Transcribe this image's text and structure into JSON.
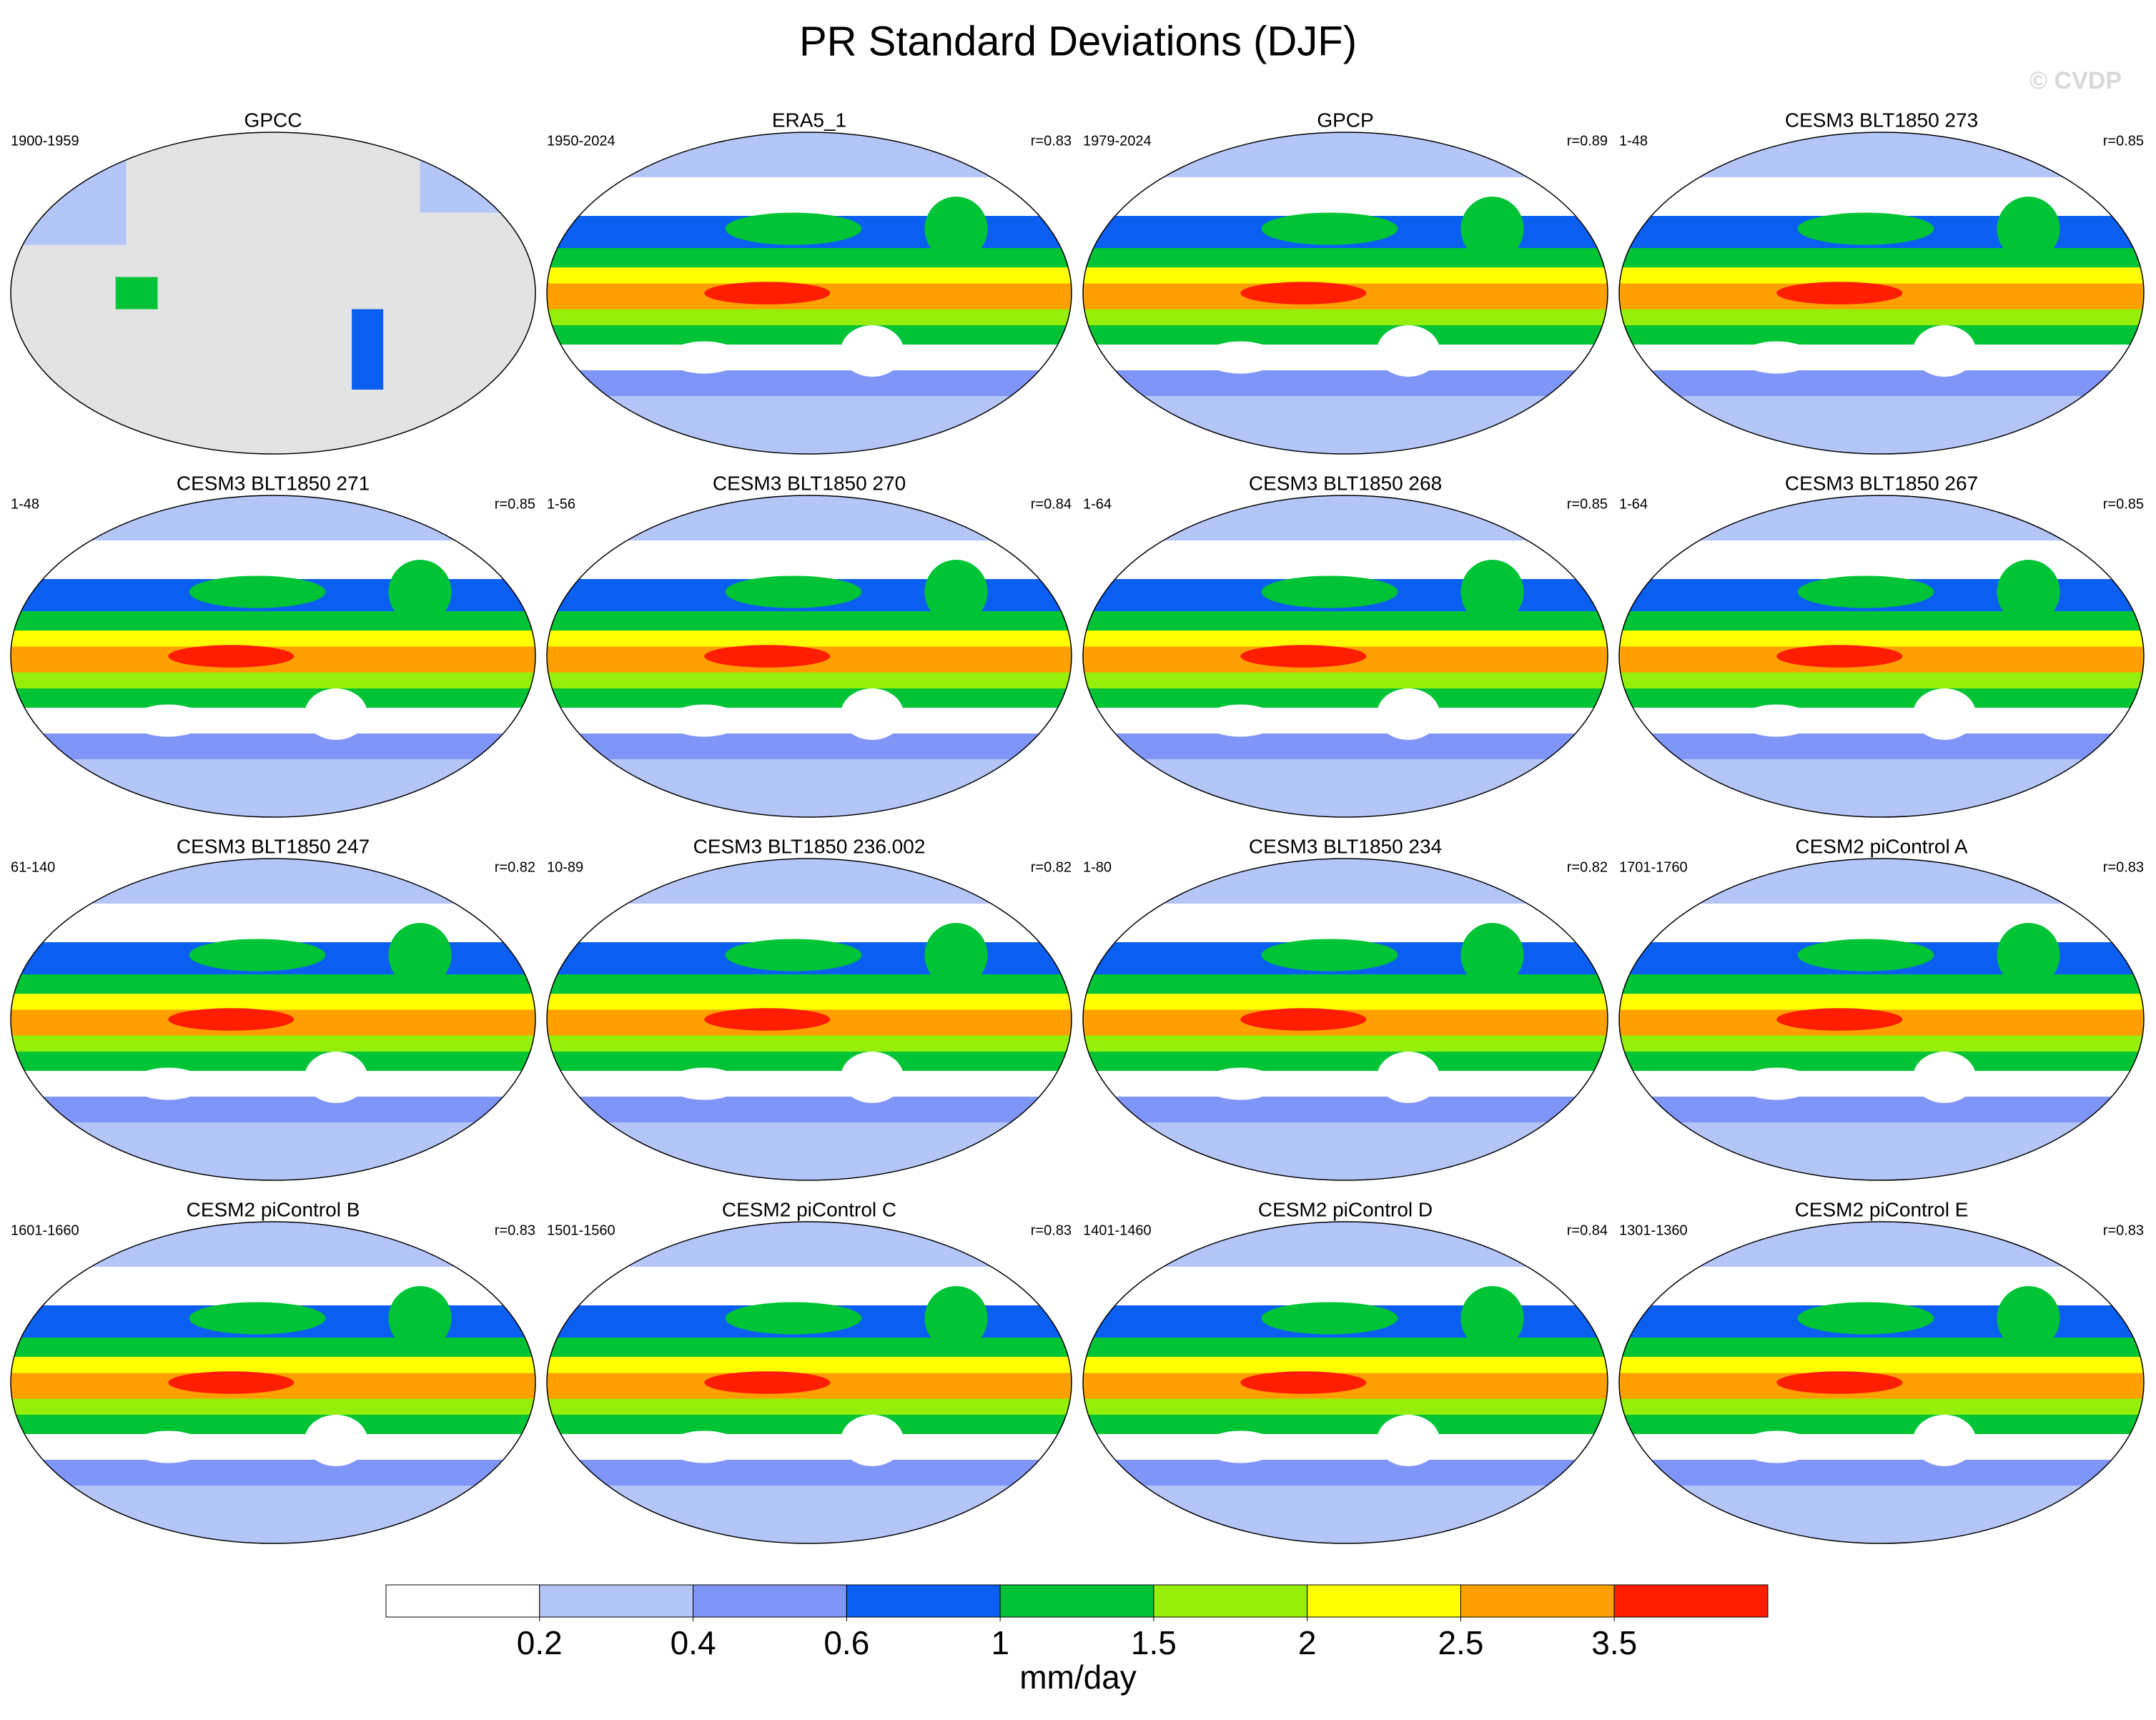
{
  "title": "PR Standard Deviations (DJF)",
  "watermark": "© CVDP",
  "panels": [
    {
      "title": "GPCC",
      "period": "1900-1959"
    },
    {
      "title": "ERA5_1",
      "period": "1950-2024",
      "r": "r=0.83"
    },
    {
      "title": "GPCP",
      "period": "1979-2024",
      "r": "r=0.89"
    },
    {
      "title": "CESM3 BLT1850 273",
      "period": "1-48",
      "r": "r=0.85"
    },
    {
      "title": "CESM3 BLT1850 271",
      "period": "1-48",
      "r": "r=0.85"
    },
    {
      "title": "CESM3 BLT1850 270",
      "period": "1-56",
      "r": "r=0.84"
    },
    {
      "title": "CESM3 BLT1850 268",
      "period": "1-64",
      "r": "r=0.85"
    },
    {
      "title": "CESM3 BLT1850 267",
      "period": "1-64",
      "r": "r=0.85"
    },
    {
      "title": "CESM3 BLT1850 247",
      "period": "61-140",
      "r": "r=0.82"
    },
    {
      "title": "CESM3 BLT1850 236.002",
      "period": "10-89",
      "r": "r=0.82"
    },
    {
      "title": "CESM3 BLT1850 234",
      "period": "1-80",
      "r": "r=0.82"
    },
    {
      "title": "CESM2 piControl A",
      "period": "1701-1760",
      "r": "r=0.83"
    },
    {
      "title": "CESM2 piControl B",
      "period": "1601-1660",
      "r": "r=0.83"
    },
    {
      "title": "CESM2 piControl C",
      "period": "1501-1560",
      "r": "r=0.83"
    },
    {
      "title": "CESM2 piControl D",
      "period": "1401-1460",
      "r": "r=0.84"
    },
    {
      "title": "CESM2 piControl E",
      "period": "1301-1360",
      "r": "r=0.83"
    }
  ],
  "colorbar": {
    "levels": [
      0.2,
      0.4,
      0.6,
      1,
      1.5,
      2,
      2.5,
      3.5
    ],
    "colors": [
      "#ffffff",
      "#b4c5f7",
      "#7f95f7",
      "#0a5ff0",
      "#00c436",
      "#96ef0a",
      "#ffff00",
      "#ff9f00",
      "#ff1e00"
    ],
    "units": "mm/day"
  }
}
